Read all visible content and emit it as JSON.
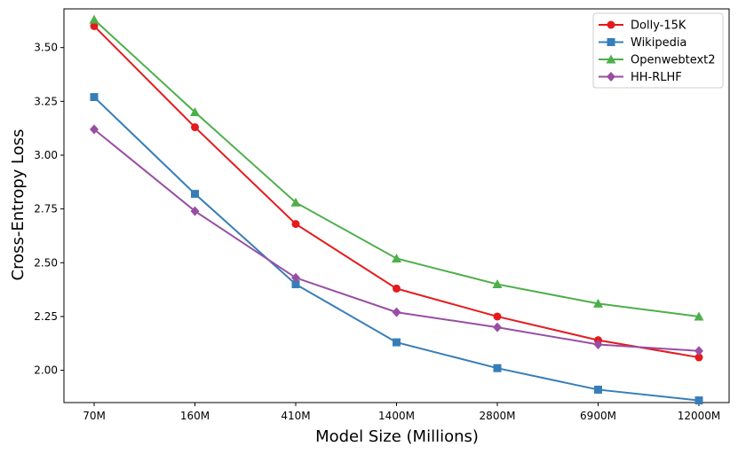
{
  "chart_data": {
    "type": "line",
    "title": "",
    "xlabel": "Model Size (Millions)",
    "ylabel": "Cross-Entropy Loss",
    "categories": [
      "70M",
      "160M",
      "410M",
      "1400M",
      "2800M",
      "6900M",
      "12000M"
    ],
    "ylim": [
      1.85,
      3.68
    ],
    "yticks": [
      2.0,
      2.25,
      2.5,
      2.75,
      3.0,
      3.25,
      3.5
    ],
    "ytick_labels": [
      "2.00",
      "2.25",
      "2.50",
      "2.75",
      "3.00",
      "3.25",
      "3.50"
    ],
    "grid": false,
    "legend_position": "top-right",
    "series": [
      {
        "name": "Dolly-15K",
        "color": "#e41a1c",
        "marker": "circle",
        "values": [
          3.6,
          3.13,
          2.68,
          2.38,
          2.25,
          2.14,
          2.06
        ]
      },
      {
        "name": "Wikipedia",
        "color": "#377eb8",
        "marker": "square",
        "values": [
          3.27,
          2.82,
          2.4,
          2.13,
          2.01,
          1.91,
          1.86
        ]
      },
      {
        "name": "Openwebtext2",
        "color": "#4daf4a",
        "marker": "triangle",
        "values": [
          3.63,
          3.2,
          2.78,
          2.52,
          2.4,
          2.31,
          2.25
        ]
      },
      {
        "name": "HH-RLHF",
        "color": "#984ea3",
        "marker": "diamond",
        "values": [
          3.12,
          2.74,
          2.43,
          2.27,
          2.2,
          2.12,
          2.09
        ]
      }
    ]
  }
}
